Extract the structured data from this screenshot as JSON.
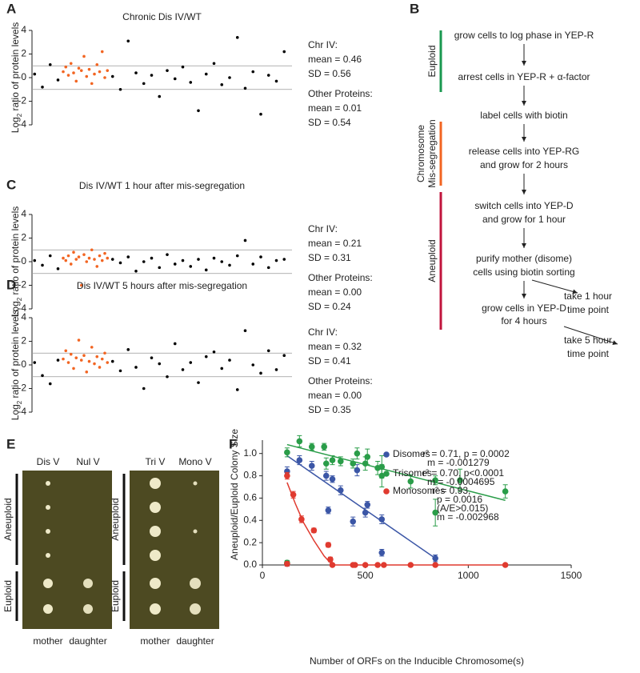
{
  "panel_labels": [
    "A",
    "B",
    "C",
    "D",
    "E",
    "F"
  ],
  "chart_data": [
    {
      "type": "scatter",
      "title": "Chronic Dis IV/WT",
      "ylabel": {
        "pre": "Log",
        "sub": "2",
        "post": " ratio of protein levels"
      },
      "xlim": [
        0,
        100
      ],
      "ylim": [
        -4,
        4
      ],
      "yticks": [
        -4,
        -2,
        0,
        2,
        4
      ],
      "reference_lines": [
        -1,
        1
      ],
      "stats": [
        "Chr IV:",
        "mean = 0.46",
        "SD = 0.56",
        "Other Proteins:",
        "mean = 0.01",
        "SD = 0.54"
      ],
      "series": [
        {
          "color": "#f26522",
          "x": [
            12,
            13,
            14,
            15,
            16,
            17,
            18,
            19,
            20,
            21,
            22,
            23,
            24,
            25,
            26,
            27,
            28,
            29
          ],
          "values": [
            0.5,
            0.9,
            0.2,
            1.2,
            0.4,
            -0.3,
            0.8,
            0.6,
            1.8,
            0.1,
            0.7,
            -0.5,
            0.3,
            1.1,
            0.5,
            2.2,
            0.0,
            0.6
          ]
        },
        {
          "color": "#000000",
          "x": [
            1,
            4,
            7,
            10,
            31,
            34,
            37,
            40,
            43,
            46,
            49,
            52,
            55,
            58,
            61,
            64,
            67,
            70,
            73,
            76,
            79,
            82,
            85,
            88,
            91,
            94,
            97
          ],
          "values": [
            0.3,
            -0.8,
            1.1,
            -0.2,
            0.1,
            -1.0,
            3.1,
            0.4,
            -0.5,
            0.2,
            -1.6,
            0.6,
            -0.1,
            0.9,
            -0.4,
            -2.8,
            0.3,
            1.2,
            -0.6,
            0.0,
            3.4,
            -0.9,
            0.5,
            -3.1,
            0.2,
            -0.3,
            2.2
          ]
        }
      ]
    },
    {
      "type": "scatter",
      "title": "Dis IV/WT 1 hour after mis-segregation",
      "ylabel": {
        "pre": "Log",
        "sub": "2",
        "post": " ratio of protein levels"
      },
      "xlim": [
        0,
        100
      ],
      "ylim": [
        -4,
        4
      ],
      "yticks": [
        -4,
        -2,
        0,
        2,
        4
      ],
      "reference_lines": [
        -1,
        1
      ],
      "stats": [
        "Chr IV:",
        "mean = 0.21",
        "SD = 0.31",
        "Other Proteins:",
        "mean = 0.00",
        "SD = 0.24"
      ],
      "series": [
        {
          "color": "#f26522",
          "x": [
            12,
            13,
            14,
            15,
            16,
            17,
            18,
            19,
            20,
            21,
            22,
            23,
            24,
            25,
            26,
            27,
            28,
            29
          ],
          "values": [
            0.3,
            0.1,
            0.5,
            -0.2,
            0.8,
            0.2,
            0.4,
            -2.0,
            0.6,
            0.0,
            0.3,
            1.0,
            0.2,
            -0.4,
            0.5,
            0.1,
            0.7,
            0.3
          ]
        },
        {
          "color": "#000000",
          "x": [
            1,
            4,
            7,
            10,
            31,
            34,
            37,
            40,
            43,
            46,
            49,
            52,
            55,
            58,
            61,
            64,
            67,
            70,
            73,
            76,
            79,
            82,
            85,
            88,
            91,
            94,
            97
          ],
          "values": [
            0.1,
            -0.3,
            0.5,
            -0.6,
            0.2,
            -0.1,
            0.4,
            -0.8,
            0.0,
            0.3,
            -0.5,
            0.6,
            -0.2,
            0.1,
            -0.4,
            0.2,
            -0.7,
            0.3,
            0.0,
            -0.3,
            0.5,
            1.8,
            -0.2,
            0.4,
            -0.5,
            0.1,
            0.2
          ]
        }
      ]
    },
    {
      "type": "scatter",
      "title": "Dis IV/WT 5 hours after mis-segregation",
      "ylabel": {
        "pre": "Log",
        "sub": "2",
        "post": " ratio of protein levels"
      },
      "xlim": [
        0,
        100
      ],
      "ylim": [
        -4,
        4
      ],
      "yticks": [
        -4,
        -2,
        0,
        2,
        4
      ],
      "reference_lines": [
        -1,
        1
      ],
      "stats": [
        "Chr IV:",
        "mean = 0.32",
        "SD = 0.41",
        "Other Proteins:",
        "mean = 0.00",
        "SD = 0.35"
      ],
      "series": [
        {
          "color": "#f26522",
          "x": [
            12,
            13,
            14,
            15,
            16,
            17,
            18,
            19,
            20,
            21,
            22,
            23,
            24,
            25,
            26,
            27,
            28,
            29
          ],
          "values": [
            0.5,
            1.2,
            0.2,
            0.9,
            -0.3,
            0.6,
            2.1,
            0.4,
            0.8,
            -0.6,
            0.3,
            1.5,
            0.1,
            0.7,
            -0.2,
            0.5,
            1.0,
            0.2
          ]
        },
        {
          "color": "#000000",
          "x": [
            1,
            4,
            7,
            10,
            31,
            34,
            37,
            40,
            43,
            46,
            49,
            52,
            55,
            58,
            61,
            64,
            67,
            70,
            73,
            76,
            79,
            82,
            85,
            88,
            91,
            94,
            97
          ],
          "values": [
            0.2,
            -0.9,
            -1.6,
            0.4,
            0.3,
            -0.5,
            1.3,
            -0.2,
            -2.0,
            0.6,
            0.1,
            -1.0,
            1.8,
            -0.4,
            0.2,
            -1.5,
            0.7,
            1.1,
            -0.3,
            0.4,
            -2.1,
            2.9,
            0.0,
            -0.7,
            1.2,
            -0.4,
            0.8
          ]
        }
      ]
    },
    {
      "type": "errorscatter",
      "xlabel": "Number of ORFs on the Inducible Chromosome(s)",
      "ylabel": "Aneuploid/Euploid Colony Size",
      "xlim": [
        0,
        1500
      ],
      "xticks": [
        0,
        500,
        1000,
        1500
      ],
      "ylim": [
        0,
        1.12
      ],
      "yticks": [
        {
          "value": 0,
          "label": "0.0"
        },
        {
          "value": 0.2,
          "label": "0.2"
        },
        {
          "value": 0.4,
          "label": "0.4"
        },
        {
          "value": 0.6,
          "label": "0.6"
        },
        {
          "value": 0.8,
          "label": "0.8"
        },
        {
          "value": 1,
          "label": "1.0"
        }
      ],
      "series": [
        {
          "name": "Disomes",
          "color": "#3b56a6",
          "legend_lines": [
            "r² = 0.71, p = 0.0002",
            "m = -0.001279"
          ],
          "x": [
            120,
            120,
            180,
            240,
            310,
            320,
            340,
            380,
            440,
            460,
            500,
            510,
            580,
            580,
            840
          ],
          "values": [
            0.84,
            0.01,
            0.94,
            0.89,
            0.8,
            0.49,
            0.77,
            0.67,
            0.39,
            0.85,
            0.47,
            0.54,
            0.41,
            0.11,
            0.06
          ],
          "errors": [
            0.04,
            0.02,
            0.04,
            0.04,
            0.04,
            0.03,
            0.03,
            0.04,
            0.04,
            0.05,
            0.04,
            0.03,
            0.04,
            0.03,
            0.03
          ],
          "fit": {
            "x": [
              120,
              840
            ],
            "values": [
              0.98,
              0.06
            ]
          }
        },
        {
          "name": "Trisomes",
          "color": "#2a9d49",
          "legend_lines": [
            "r² = 0.70, p<0.0001",
            "m = -0.0004695"
          ],
          "x": [
            120,
            120,
            180,
            240,
            300,
            310,
            340,
            380,
            440,
            460,
            500,
            510,
            560,
            580,
            580,
            720,
            840,
            840,
            960,
            1180
          ],
          "values": [
            1.01,
            0.02,
            1.11,
            1.06,
            1.06,
            0.91,
            0.94,
            0.93,
            0.91,
            1.0,
            0.91,
            0.97,
            0.87,
            0.8,
            0.88,
            0.75,
            0.76,
            0.47,
            0.76,
            0.66
          ],
          "errors": [
            0.04,
            0.02,
            0.05,
            0.03,
            0.03,
            0.05,
            0.04,
            0.04,
            0.04,
            0.05,
            0.06,
            0.07,
            0.06,
            0.1,
            0.1,
            0.06,
            0.04,
            0.12,
            0.1,
            0.06
          ],
          "fit": {
            "x": [
              120,
              1180
            ],
            "values": [
              1.08,
              0.58
            ]
          }
        },
        {
          "name": "Monosomes",
          "color": "#e03a2f",
          "legend_lines": [
            "r² = 0.93,",
            "p = 0.0016",
            "(A/E>0.015)",
            "m = -0.002968"
          ],
          "x": [
            120,
            120,
            150,
            190,
            250,
            320,
            330,
            340,
            440,
            450,
            500,
            560,
            590,
            720,
            840,
            1180
          ],
          "values": [
            0.8,
            0.01,
            0.63,
            0.41,
            0.31,
            0.18,
            0.05,
            0,
            0,
            0,
            0,
            0,
            0,
            0,
            0,
            0
          ],
          "errors": [
            0.03,
            0.02,
            0.03,
            0.03,
            0.02,
            0.02,
            0.02,
            0,
            0,
            0,
            0,
            0,
            0,
            0,
            0,
            0
          ],
          "fit": {
            "x": [
              120,
              160,
              200,
              250,
              300,
              340,
              1180
            ],
            "values": [
              0.74,
              0.55,
              0.38,
              0.22,
              0.08,
              0,
              0
            ]
          }
        }
      ]
    }
  ],
  "flowchart": {
    "phases": [
      {
        "lines": [
          "Euploid"
        ],
        "color": "#1a9850"
      },
      {
        "lines": [
          "Chromosome",
          "Mis-segregation"
        ],
        "color": "#f26522"
      },
      {
        "lines": [
          "Aneuploid"
        ],
        "color": "#c0143c"
      }
    ],
    "steps": [
      {
        "lines": [
          "grow cells to log phase in YEP-R"
        ]
      },
      {
        "lines": [
          "arrest cells in YEP-R + α-factor"
        ]
      },
      {
        "lines": [
          "label cells with biotin"
        ]
      },
      {
        "lines": [
          "release cells into YEP-RG",
          "and grow for 2 hours"
        ]
      },
      {
        "lines": [
          "switch cells into YEP-D",
          "and grow for 1 hour"
        ]
      },
      {
        "lines": [
          "purify mother (disome)",
          "cells using biotin sorting"
        ]
      },
      {
        "lines": [
          "grow cells in YEP-D",
          "for 4 hours"
        ]
      }
    ],
    "side_steps": [
      {
        "lines": [
          "take 1 hour",
          "time point"
        ]
      },
      {
        "lines": [
          "take 5 hour",
          "time point"
        ]
      }
    ]
  },
  "plates": {
    "panels": [
      {
        "columns": [
          "Dis V",
          "Nul V"
        ]
      },
      {
        "columns": [
          "Tri V",
          "Mono V"
        ]
      }
    ],
    "groups": [
      "Aneuploid",
      "Euploid"
    ],
    "cells": [
      "mother",
      "daughter"
    ]
  }
}
